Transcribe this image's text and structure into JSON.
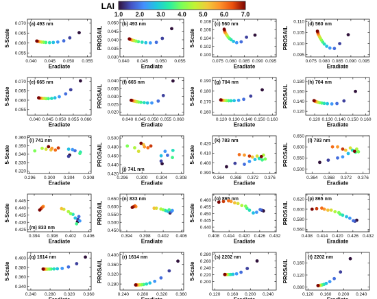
{
  "colorbar": {
    "title": "LAI",
    "min": 1.0,
    "max": 7.0,
    "ticks": [
      "1.0",
      "2.0",
      "3.0",
      "4.0",
      "5.0",
      "6.0",
      "7.0"
    ]
  },
  "chart_data": [
    {
      "type": "scatter",
      "label": "(a) 493 nm",
      "xlabel": "Eradiate",
      "ylabel": "5-Scale",
      "xlim": [
        0.039,
        0.056
      ],
      "ylim": [
        0.053,
        0.072
      ],
      "xticks": [
        "0.040",
        "0.045",
        "0.050",
        "0.055"
      ],
      "yticks": [
        "0.055",
        "0.060",
        "0.065",
        "0.070"
      ],
      "x": [
        0.0528,
        0.0503,
        0.0487,
        0.0471,
        0.0459,
        0.0449,
        0.0439,
        0.0433,
        0.0428,
        0.0424,
        0.0421,
        0.0419,
        0.0417,
        0.0416,
        0.0415
      ],
      "y": [
        0.0652,
        0.0626,
        0.0611,
        0.0605,
        0.0603,
        0.0602,
        0.0603,
        0.0604,
        0.0605,
        0.0606,
        0.0607,
        0.0608,
        0.0609,
        0.0609,
        0.061
      ]
    },
    {
      "type": "scatter",
      "label": "(b) 493 nm",
      "xlabel": "Eradiate",
      "ylabel": "PROSAIL",
      "xlim": [
        0.039,
        0.056
      ],
      "ylim": [
        0.03,
        0.052
      ],
      "xticks": [
        "0.040",
        "0.045",
        "0.050",
        "0.055"
      ],
      "yticks": [
        "0.030",
        "0.035",
        "0.040",
        "0.045",
        "0.050"
      ],
      "x": [
        0.0528,
        0.0503,
        0.0487,
        0.0471,
        0.0459,
        0.0449,
        0.0439,
        0.0433,
        0.0428,
        0.0424,
        0.0421,
        0.0419,
        0.0417,
        0.0416,
        0.0415
      ],
      "y": [
        0.0465,
        0.0408,
        0.0385,
        0.0382,
        0.0383,
        0.0386,
        0.0389,
        0.0392,
        0.0395,
        0.0397,
        0.0399,
        0.0401,
        0.0402,
        0.0404,
        0.0405
      ]
    },
    {
      "type": "scatter",
      "label": "(c) 560 nm",
      "xlabel": "Eradiate",
      "ylabel": "5-Scale",
      "xlim": [
        0.073,
        0.097
      ],
      "ylim": [
        0.0995,
        0.1085
      ],
      "xticks": [
        "0.075",
        "0.080",
        "0.085",
        "0.090",
        "0.095"
      ],
      "yticks": [
        "0.100",
        "0.102",
        "0.104",
        "0.106",
        "0.108"
      ],
      "x": [
        0.089,
        0.0858,
        0.0838,
        0.0821,
        0.0809,
        0.08,
        0.0794,
        0.0789,
        0.0785,
        0.0782,
        0.0779,
        0.0777,
        0.0776,
        0.0775,
        0.0774
      ],
      "y": [
        0.1047,
        0.1042,
        0.1031,
        0.1029,
        0.1032,
        0.1036,
        0.1039,
        0.1042,
        0.1046,
        0.1049,
        0.1052,
        0.1054,
        0.1057,
        0.1059,
        0.1061
      ]
    },
    {
      "type": "scatter",
      "label": "(d) 560 nm",
      "xlabel": "Eradiate",
      "ylabel": "PROSAIL",
      "xlim": [
        0.073,
        0.097
      ],
      "ylim": [
        0.094,
        0.111
      ],
      "xticks": [
        "0.075",
        "0.080",
        "0.085",
        "0.090",
        "0.095"
      ],
      "yticks": [
        "0.095",
        "0.100",
        "0.105",
        "0.110"
      ],
      "x": [
        0.089,
        0.0858,
        0.0838,
        0.0821,
        0.0809,
        0.08,
        0.0794,
        0.0789,
        0.0785,
        0.0782,
        0.0779,
        0.0777,
        0.0776,
        0.0775,
        0.0774
      ],
      "y": [
        0.104,
        0.1,
        0.0978,
        0.098,
        0.0988,
        0.0998,
        0.1007,
        0.1016,
        0.1024,
        0.1031,
        0.1038,
        0.1043,
        0.1048,
        0.1052,
        0.1056
      ]
    },
    {
      "type": "scatter",
      "label": "(e) 665 nm",
      "xlabel": "Eradiate",
      "ylabel": "5-Scale",
      "xlim": [
        0.037,
        0.062
      ],
      "ylim": [
        0.052,
        0.072
      ],
      "xticks": [
        "0.040",
        "0.045",
        "0.050",
        "0.055",
        "0.060"
      ],
      "yticks": [
        "0.055",
        "0.060",
        "0.065",
        "0.070"
      ],
      "x": [
        0.0578,
        0.054,
        0.052,
        0.0495,
        0.0478,
        0.0465,
        0.0452,
        0.0443,
        0.0436,
        0.043,
        0.0425,
        0.0421,
        0.0418,
        0.0416,
        0.0414
      ],
      "y": [
        0.0702,
        0.0655,
        0.0633,
        0.0618,
        0.0612,
        0.0609,
        0.0608,
        0.0608,
        0.0609,
        0.0609,
        0.061,
        0.061,
        0.0611,
        0.0611,
        0.0612
      ]
    },
    {
      "type": "scatter",
      "label": "(f) 665 nm",
      "xlabel": "Eradiate",
      "ylabel": "PROSAIL",
      "xlim": [
        0.037,
        0.062
      ],
      "ylim": [
        0.018,
        0.042
      ],
      "xticks": [
        "0.040",
        "0.045",
        "0.050",
        "0.055",
        "0.060"
      ],
      "yticks": [
        "0.020",
        "0.025",
        "0.030",
        "0.035",
        "0.040"
      ],
      "x": [
        0.0578,
        0.054,
        0.052,
        0.0495,
        0.0478,
        0.0465,
        0.0452,
        0.0443,
        0.0436,
        0.043,
        0.0425,
        0.0421,
        0.0418,
        0.0416,
        0.0414
      ],
      "y": [
        0.0398,
        0.0305,
        0.027,
        0.0258,
        0.0258,
        0.026,
        0.0262,
        0.0264,
        0.0266,
        0.0268,
        0.027,
        0.0272,
        0.0273,
        0.0274,
        0.0275
      ]
    },
    {
      "type": "scatter",
      "label": "(g) 704 nm",
      "xlabel": "Eradiate",
      "ylabel": "5-Scale",
      "xlim": [
        0.113,
        0.163
      ],
      "ylim": [
        0.157,
        0.193
      ],
      "xticks": [
        "0.120",
        "0.130",
        "0.140",
        "0.150",
        "0.160"
      ],
      "yticks": [
        "0.160",
        "0.170",
        "0.180",
        "0.190"
      ],
      "x": [
        0.152,
        0.143,
        0.1375,
        0.1335,
        0.13,
        0.1275,
        0.1256,
        0.124,
        0.1228,
        0.1218,
        0.121,
        0.1205,
        0.12,
        0.1197,
        0.1195
      ],
      "y": [
        0.1812,
        0.1752,
        0.1722,
        0.1712,
        0.1709,
        0.1708,
        0.1708,
        0.1709,
        0.171,
        0.1711,
        0.1712,
        0.1713,
        0.1714,
        0.1715,
        0.1716
      ]
    },
    {
      "type": "scatter",
      "label": "(h) 704 nm",
      "xlabel": "Eradiate",
      "ylabel": "PROSAIL",
      "xlim": [
        0.113,
        0.163
      ],
      "ylim": [
        0.112,
        0.188
      ],
      "xticks": [
        "0.120",
        "0.130",
        "0.140",
        "0.150",
        "0.160"
      ],
      "yticks": [
        "0.120",
        "0.140",
        "0.160",
        "0.180"
      ],
      "x": [
        0.152,
        0.143,
        0.1375,
        0.1335,
        0.13,
        0.1275,
        0.1256,
        0.124,
        0.1228,
        0.1218,
        0.121,
        0.1205,
        0.12,
        0.1197,
        0.1195
      ],
      "y": [
        0.16,
        0.1408,
        0.1355,
        0.1348,
        0.1352,
        0.1358,
        0.1365,
        0.1372,
        0.138,
        0.1388,
        0.1395,
        0.1401,
        0.1406,
        0.141,
        0.1414
      ]
    },
    {
      "type": "scatter",
      "label": "(i) 741 nm",
      "xlabel": "Eradiate",
      "ylabel": "5-Scale",
      "xlim": [
        0.2955,
        0.3085
      ],
      "ylim": [
        0.317,
        0.362
      ],
      "xticks": [
        "0.296",
        "0.300",
        "0.304",
        "0.308"
      ],
      "yticks": [
        "0.320",
        "0.330",
        "0.340",
        "0.350",
        "0.360"
      ],
      "x": [
        0.3041,
        0.3039,
        0.3052,
        0.3047,
        0.3039,
        0.3063,
        0.3062,
        0.297,
        0.2985,
        0.2993,
        0.3003,
        0.3005,
        0.3012,
        0.3018,
        0.2998
      ],
      "y": [
        0.339,
        0.3375,
        0.3442,
        0.3455,
        0.346,
        0.3425,
        0.341,
        0.344,
        0.347,
        0.346,
        0.3452,
        0.347,
        0.345,
        0.3475,
        0.349
      ]
    },
    {
      "type": "scatter",
      "label": "(j) 741 nm",
      "xlabel": "Eradiate",
      "ylabel": "PROSAIL",
      "xlim": [
        0.2955,
        0.3085
      ],
      "ylim": [
        0.42,
        0.505
      ],
      "xticks": [
        "0.296",
        "0.300",
        "0.304",
        "0.308"
      ],
      "yticks": [
        "0.420",
        "0.440",
        "0.460",
        "0.480",
        "0.500"
      ],
      "x": [
        0.3041,
        0.3039,
        0.3052,
        0.3047,
        0.3039,
        0.3063,
        0.3062,
        0.297,
        0.2985,
        0.2993,
        0.3003,
        0.3005,
        0.3012,
        0.3018,
        0.2998
      ],
      "y": [
        0.442,
        0.448,
        0.461,
        0.47,
        0.46,
        0.472,
        0.456,
        0.482,
        0.478,
        0.47,
        0.485,
        0.48,
        0.478,
        0.482,
        0.488
      ]
    },
    {
      "type": "scatter",
      "label": "(k) 783 nm",
      "xlabel": "Eradiate",
      "ylabel": "5-Scale",
      "xlim": [
        0.3625,
        0.3775
      ],
      "ylim": [
        0.389,
        0.428
      ],
      "xticks": [
        "0.364",
        "0.368",
        "0.372",
        "0.376"
      ],
      "yticks": [
        "0.390",
        "0.400",
        "0.410",
        "0.420"
      ],
      "x": [
        0.3658,
        0.3678,
        0.37,
        0.3712,
        0.3725,
        0.3735,
        0.3742,
        0.3749,
        0.3745,
        0.373,
        0.3719,
        0.37,
        0.3688,
        0.3712,
        0.374
      ],
      "y": [
        0.396,
        0.3995,
        0.3985,
        0.4015,
        0.4035,
        0.4045,
        0.403,
        0.404,
        0.408,
        0.407,
        0.406,
        0.408,
        0.4085,
        0.407,
        0.4065
      ]
    },
    {
      "type": "scatter",
      "label": "(l) 783 nm",
      "xlabel": "Eradiate",
      "ylabel": "PROSAIL",
      "xlim": [
        0.3625,
        0.3775
      ],
      "ylim": [
        0.48,
        0.65
      ],
      "xticks": [
        "0.364",
        "0.368",
        "0.372",
        "0.376"
      ],
      "yticks": [
        "0.500",
        "0.550",
        "0.600",
        "0.650"
      ],
      "x": [
        0.3658,
        0.3678,
        0.37,
        0.3712,
        0.3725,
        0.3735,
        0.3742,
        0.3749,
        0.3745,
        0.373,
        0.3719,
        0.37,
        0.3688,
        0.3712,
        0.374
      ],
      "y": [
        0.53,
        0.54,
        0.55,
        0.555,
        0.57,
        0.585,
        0.576,
        0.578,
        0.59,
        0.595,
        0.585,
        0.6,
        0.6,
        0.59,
        0.58
      ]
    },
    {
      "type": "scatter",
      "label": "(m) 833 nm",
      "xlabel": "Eradiate",
      "ylabel": "5-Scale",
      "xlim": [
        0.3925,
        0.4065
      ],
      "ylim": [
        0.4235,
        0.4495
      ],
      "xticks": [
        "0.394",
        "0.398",
        "0.402",
        "0.406"
      ],
      "yticks": [
        "0.425",
        "0.430",
        "0.435",
        "0.440",
        "0.445"
      ],
      "x": [
        0.4035,
        0.4036,
        0.4038,
        0.404,
        0.403,
        0.4025,
        0.4033,
        0.402,
        0.4015,
        0.4005,
        0.4,
        0.396,
        0.3958,
        0.3955,
        0.3952
      ],
      "y": [
        0.4305,
        0.432,
        0.434,
        0.431,
        0.433,
        0.4355,
        0.429,
        0.436,
        0.4375,
        0.439,
        0.4395,
        0.441,
        0.4405,
        0.4395,
        0.4385
      ]
    },
    {
      "type": "scatter",
      "label": "(n) 833 nm",
      "xlabel": "Eradiate",
      "ylabel": "PROSAIL",
      "xlim": [
        0.3925,
        0.4065
      ],
      "ylim": [
        0.44,
        0.68
      ],
      "xticks": [
        "0.394",
        "0.398",
        "0.402",
        "0.406"
      ],
      "yticks": [
        "0.450",
        "0.500",
        "0.550",
        "0.600",
        "0.650"
      ],
      "x": [
        0.4035,
        0.4036,
        0.4038,
        0.404,
        0.403,
        0.4025,
        0.4033,
        0.402,
        0.4015,
        0.4005,
        0.4,
        0.396,
        0.3958,
        0.3955,
        0.3952
      ],
      "y": [
        0.56,
        0.565,
        0.57,
        0.575,
        0.57,
        0.575,
        0.58,
        0.58,
        0.585,
        0.59,
        0.59,
        0.6,
        0.605,
        0.6,
        0.595
      ]
    },
    {
      "type": "scatter",
      "label": "(o) 865 nm",
      "xlabel": "Eradiate",
      "ylabel": "5-Scale",
      "xlim": [
        0.4075,
        0.4325
      ],
      "ylim": [
        0.4365,
        0.4645
      ],
      "xticks": [
        "0.408",
        "0.414",
        "0.420",
        "0.426",
        "0.432"
      ],
      "yticks": [
        "0.440",
        "0.445",
        "0.450",
        "0.455",
        "0.460"
      ],
      "x": [
        0.4275,
        0.4268,
        0.4262,
        0.4248,
        0.4235,
        0.422,
        0.421,
        0.4205,
        0.419,
        0.4175,
        0.4162,
        0.4148,
        0.4138,
        0.4118,
        0.41
      ],
      "y": [
        0.452,
        0.4525,
        0.453,
        0.451,
        0.4505,
        0.4525,
        0.454,
        0.4555,
        0.456,
        0.4575,
        0.458,
        0.459,
        0.4595,
        0.459,
        0.4585
      ]
    },
    {
      "type": "scatter",
      "label": "(p) 865 nm",
      "xlabel": "Eradiate",
      "ylabel": "PROSAIL",
      "xlim": [
        0.4075,
        0.4325
      ],
      "ylim": [
        0.555,
        0.63
      ],
      "xticks": [
        "0.408",
        "0.414",
        "0.420",
        "0.426",
        "0.432"
      ],
      "yticks": [
        "0.560",
        "0.580",
        "0.600",
        "0.620"
      ],
      "x": [
        0.4275,
        0.4268,
        0.4262,
        0.4248,
        0.4235,
        0.422,
        0.421,
        0.4205,
        0.419,
        0.4175,
        0.4162,
        0.4148,
        0.4138,
        0.4118,
        0.41
      ],
      "y": [
        0.578,
        0.576,
        0.577,
        0.582,
        0.585,
        0.588,
        0.59,
        0.593,
        0.595,
        0.598,
        0.598,
        0.6,
        0.602,
        0.601,
        0.6
      ]
    },
    {
      "type": "scatter",
      "label": "(q) 1614 nm",
      "xlabel": "Eradiate",
      "ylabel": "5-Scale",
      "xlim": [
        0.233,
        0.365
      ],
      "ylim": [
        0.332,
        0.412
      ],
      "xticks": [
        "0.240",
        "0.280",
        "0.320",
        "0.360"
      ],
      "yticks": [
        "0.340",
        "0.360",
        "0.380",
        "0.400"
      ],
      "x": [
        0.353,
        0.335,
        0.318,
        0.305,
        0.295,
        0.288,
        0.282,
        0.278,
        0.274,
        0.2715,
        0.2695,
        0.268,
        0.267,
        0.266,
        0.2655
      ],
      "y": [
        0.402,
        0.388,
        0.381,
        0.378,
        0.3772,
        0.3768,
        0.3766,
        0.3765,
        0.3764,
        0.3764,
        0.3764,
        0.3765,
        0.3765,
        0.3766,
        0.3766
      ]
    },
    {
      "type": "scatter",
      "label": "(r) 1614 nm",
      "xlabel": "Eradiate",
      "ylabel": "PROSAIL",
      "xlim": [
        0.233,
        0.365
      ],
      "ylim": [
        0.255,
        0.41
      ],
      "xticks": [
        "0.240",
        "0.280",
        "0.320",
        "0.360"
      ],
      "yticks": [
        "0.280",
        "0.320",
        "0.360",
        "0.400"
      ],
      "x": [
        0.353,
        0.335,
        0.318,
        0.305,
        0.295,
        0.288,
        0.282,
        0.278,
        0.274,
        0.2715,
        0.2695,
        0.268,
        0.267,
        0.266,
        0.2655
      ],
      "y": [
        0.374,
        0.334,
        0.305,
        0.291,
        0.284,
        0.28,
        0.278,
        0.277,
        0.2765,
        0.2762,
        0.276,
        0.276,
        0.276,
        0.2761,
        0.2762
      ]
    },
    {
      "type": "scatter",
      "label": "(s) 2202 nm",
      "xlabel": "Eradiate",
      "ylabel": "5-Scale",
      "xlim": [
        0.115,
        0.258
      ],
      "ylim": [
        0.175,
        0.285
      ],
      "xticks": [
        "0.120",
        "0.160",
        "0.200",
        "0.240"
      ],
      "yticks": [
        "0.200",
        "0.220",
        "0.240",
        "0.260",
        "0.280"
      ],
      "x": [
        0.215,
        0.193,
        0.179,
        0.169,
        0.161,
        0.156,
        0.152,
        0.149,
        0.147,
        0.1455,
        0.1445,
        0.1438,
        0.1432,
        0.1428,
        0.1425
      ],
      "y": [
        0.26,
        0.238,
        0.227,
        0.2225,
        0.221,
        0.2205,
        0.2203,
        0.2202,
        0.2202,
        0.2202,
        0.2202,
        0.2203,
        0.2203,
        0.2204,
        0.2204
      ]
    },
    {
      "type": "scatter",
      "label": "(t) 2202 nm",
      "xlabel": "Eradiate",
      "ylabel": "PROSAIL",
      "xlim": [
        0.115,
        0.258
      ],
      "ylim": [
        0.07,
        0.195
      ],
      "xticks": [
        "0.120",
        "0.160",
        "0.200",
        "0.240"
      ],
      "yticks": [
        "0.080",
        "0.120",
        "0.160"
      ],
      "x": [
        0.215,
        0.193,
        0.179,
        0.169,
        0.161,
        0.156,
        0.152,
        0.149,
        0.147,
        0.1455,
        0.1445,
        0.1438,
        0.1432,
        0.1428,
        0.1425
      ],
      "y": [
        0.174,
        0.13,
        0.108,
        0.098,
        0.092,
        0.089,
        0.0872,
        0.0862,
        0.0856,
        0.0852,
        0.085,
        0.0849,
        0.0848,
        0.0848,
        0.0848
      ]
    }
  ]
}
